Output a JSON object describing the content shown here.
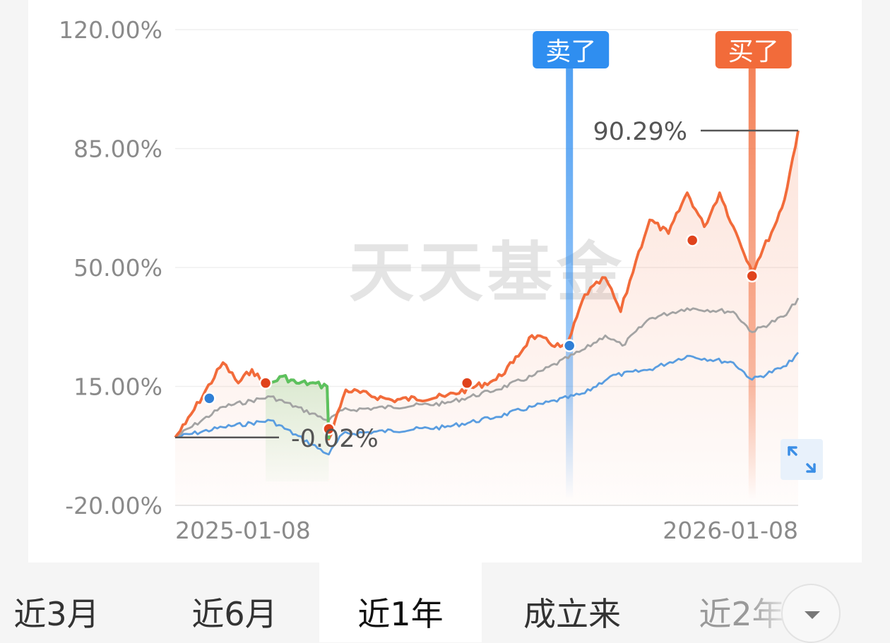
{
  "watermark": "天天基金",
  "chart_data": {
    "type": "line",
    "ylim": [
      -20,
      120
    ],
    "y_ticks": [
      "120.00%",
      "85.00%",
      "50.00%",
      "15.00%",
      "-20.00%"
    ],
    "y_tick_values": [
      120,
      85,
      50,
      15,
      -20
    ],
    "x_tick_labels": [
      "2025-01-08",
      "2026-01-08"
    ],
    "xlim": [
      "2025-01-08",
      "2026-01-08"
    ],
    "grid": true,
    "colors": {
      "fund": "#f26b3a",
      "fund_down": "#5cc25e",
      "benchmark": "#a3a3a3",
      "index": "#5a9de0",
      "axis_text": "#8a8a8a"
    },
    "series": [
      {
        "key": "fund",
        "x": [
          "2025-01-08",
          "2025-01-14",
          "2025-02-05",
          "2025-02-14",
          "2025-02-22",
          "2025-03-02",
          "2025-03-12",
          "2025-03-20",
          "2025-03-28",
          "2025-04-07",
          "2025-04-08",
          "2025-04-18",
          "2025-05-15",
          "2025-06-15",
          "2025-07-15",
          "2025-07-25",
          "2025-08-05",
          "2025-08-25",
          "2025-09-05",
          "2025-09-17",
          "2025-09-26",
          "2025-10-05",
          "2025-10-13",
          "2025-10-24",
          "2025-11-04",
          "2025-11-14",
          "2025-11-23",
          "2025-12-01",
          "2025-12-12",
          "2025-12-25",
          "2025-12-31",
          "2026-01-08"
        ],
        "values": [
          0,
          4,
          22,
          16,
          20,
          15,
          18,
          16,
          16,
          15,
          -0.5,
          14,
          11,
          12,
          17,
          22,
          30,
          26,
          42,
          47,
          37,
          52,
          64,
          60,
          72,
          62,
          72,
          62,
          49,
          62,
          70,
          90.29
        ]
      },
      {
        "key": "benchmark",
        "x": [
          "2025-01-08",
          "2025-02-05",
          "2025-03-05",
          "2025-04-08",
          "2025-04-16",
          "2025-06-15",
          "2025-07-15",
          "2025-08-05",
          "2025-09-05",
          "2025-09-17",
          "2025-09-27",
          "2025-10-13",
          "2025-11-04",
          "2025-12-01",
          "2025-12-12",
          "2026-01-01",
          "2026-01-08"
        ],
        "values": [
          0,
          9,
          12,
          5,
          8,
          10,
          14,
          18,
          26,
          30,
          27,
          35,
          38,
          37,
          31,
          36,
          41
        ]
      },
      {
        "key": "index",
        "x": [
          "2025-01-08",
          "2025-02-05",
          "2025-03-05",
          "2025-04-08",
          "2025-04-16",
          "2025-06-15",
          "2025-07-15",
          "2025-08-05",
          "2025-09-05",
          "2025-09-20",
          "2025-10-13",
          "2025-11-04",
          "2025-12-01",
          "2025-12-12",
          "2026-01-01",
          "2026-01-08"
        ],
        "values": [
          0,
          3,
          5,
          -5,
          1,
          3,
          6,
          9,
          13,
          18,
          20,
          24,
          22,
          17,
          21,
          25
        ]
      }
    ],
    "down_segment": {
      "from": "2025-03-02",
      "to": "2025-04-08"
    },
    "trade_points": [
      {
        "x": "2025-01-28",
        "y": 11.5,
        "kind": "blue"
      },
      {
        "x": "2025-03-02",
        "y": 16.0,
        "kind": "red"
      },
      {
        "x": "2025-04-08",
        "y": 2.5,
        "kind": "red"
      },
      {
        "x": "2025-06-28",
        "y": 16.0,
        "kind": "red"
      },
      {
        "x": "2025-08-27",
        "y": 27.0,
        "kind": "blue"
      },
      {
        "x": "2025-11-07",
        "y": 58.0,
        "kind": "red"
      },
      {
        "x": "2025-12-12",
        "y": 47.5,
        "kind": "red"
      }
    ],
    "markers": [
      {
        "label": "卖了",
        "x": "2025-08-27",
        "color": "#2f8ef0"
      },
      {
        "label": "买了",
        "x": "2025-12-12",
        "color": "#f26b3a"
      }
    ],
    "annotations": [
      {
        "label": "90.29%",
        "x": "2026-01-08",
        "y": 90.29,
        "side": "left"
      },
      {
        "label": "-0.02%",
        "x": "2025-01-08",
        "y": -0.02,
        "side": "right"
      }
    ]
  },
  "tabs": [
    {
      "label": "近3月",
      "active": false
    },
    {
      "label": "近6月",
      "active": false
    },
    {
      "label": "近1年",
      "active": true
    },
    {
      "label": "成立来",
      "active": false
    },
    {
      "label": "近2年",
      "active": false
    }
  ],
  "controls": {
    "expand_icon": "expand-icon",
    "dropdown_icon": "chevron-down-icon"
  }
}
